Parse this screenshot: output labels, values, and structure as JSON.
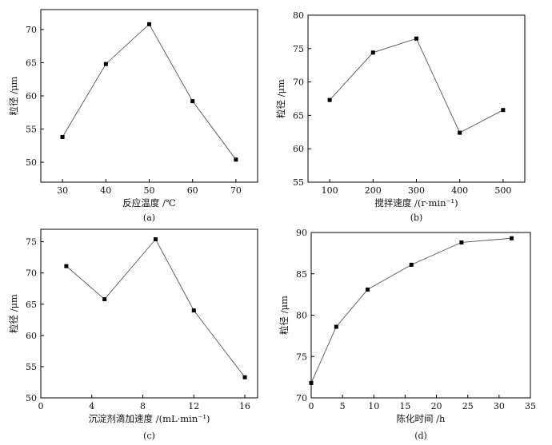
{
  "chart_data": [
    {
      "type": "line",
      "panel_label": "(a)",
      "xlabel": "反应温度 /℃",
      "ylabel": "粒径 /μm",
      "xlim": [
        25,
        75
      ],
      "ylim": [
        47,
        73
      ],
      "xticks": [
        30,
        40,
        50,
        60,
        70
      ],
      "yticks": [
        50,
        55,
        60,
        65,
        70
      ],
      "grid": false,
      "series": [
        {
          "x": [
            30,
            40,
            50,
            60,
            70
          ],
          "y": [
            53.8,
            64.8,
            70.8,
            59.2,
            50.4
          ]
        }
      ]
    },
    {
      "type": "line",
      "panel_label": "(b)",
      "xlabel": "搅拌速度 /(r·min⁻¹)",
      "ylabel": "粒径 /μm",
      "xlim": [
        50,
        550
      ],
      "ylim": [
        55,
        80
      ],
      "xticks": [
        100,
        200,
        300,
        400,
        500
      ],
      "yticks": [
        55,
        60,
        65,
        70,
        75,
        80
      ],
      "grid": false,
      "series": [
        {
          "x": [
            100,
            200,
            300,
            400,
            500
          ],
          "y": [
            67.3,
            74.4,
            76.5,
            62.4,
            65.8
          ]
        }
      ]
    },
    {
      "type": "line",
      "panel_label": "(c)",
      "xlabel": "沉淀剂滴加速度 /(mL·min⁻¹)",
      "ylabel": "粒径 /μm",
      "xlim": [
        0,
        17
      ],
      "ylim": [
        50,
        77
      ],
      "xticks": [
        0,
        4,
        8,
        12,
        16
      ],
      "yticks": [
        50,
        55,
        60,
        65,
        70,
        75
      ],
      "grid": false,
      "series": [
        {
          "x": [
            2,
            5,
            9,
            12,
            16
          ],
          "y": [
            71.1,
            65.8,
            75.4,
            64.0,
            53.3
          ]
        }
      ]
    },
    {
      "type": "line",
      "panel_label": "(d)",
      "xlabel": "陈化时间 /h",
      "ylabel": "粒径 /μm",
      "xlim": [
        0,
        35
      ],
      "ylim": [
        70,
        90
      ],
      "xticks": [
        0,
        5,
        10,
        15,
        20,
        25,
        30,
        35
      ],
      "yticks": [
        70,
        75,
        80,
        85,
        90
      ],
      "grid": false,
      "series": [
        {
          "x": [
            0,
            4,
            9,
            16,
            24,
            32
          ],
          "y": [
            71.8,
            78.6,
            83.1,
            86.1,
            88.8,
            89.3
          ]
        }
      ]
    }
  ]
}
